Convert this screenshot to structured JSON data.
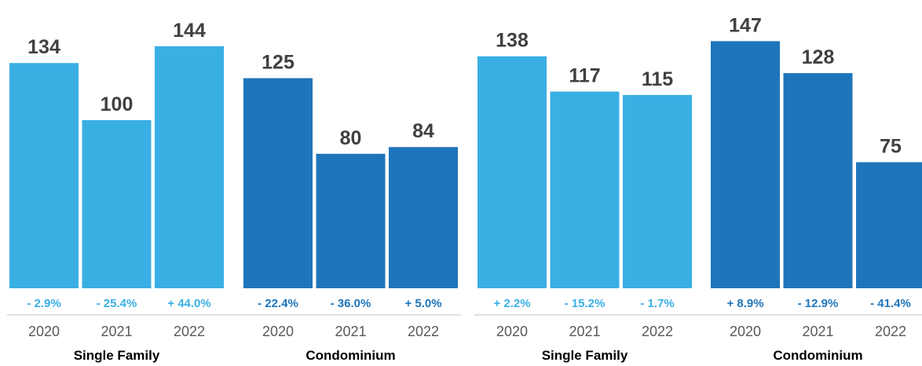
{
  "colors": {
    "single_family": "#3AAFE4",
    "condominium": "#1F75BA",
    "axis": "#BFBFBF"
  },
  "chart_data": [
    {
      "type": "bar",
      "title": "",
      "ylim": [
        0,
        150
      ],
      "groups": [
        {
          "name": "Single Family",
          "color": "#3AAFE4",
          "categories": [
            "2020",
            "2021",
            "2022"
          ],
          "values": [
            134,
            100,
            144
          ],
          "changes": [
            "- 2.9%",
            "- 25.4%",
            "+ 44.0%"
          ]
        },
        {
          "name": "Condominium",
          "color": "#1F75BA",
          "categories": [
            "2020",
            "2021",
            "2022"
          ],
          "values": [
            125,
            80,
            84
          ],
          "changes": [
            "- 22.4%",
            "- 36.0%",
            "+ 5.0%"
          ]
        }
      ]
    },
    {
      "type": "bar",
      "title": "",
      "ylim": [
        0,
        150
      ],
      "groups": [
        {
          "name": "Single Family",
          "color": "#3AAFE4",
          "categories": [
            "2020",
            "2021",
            "2022"
          ],
          "values": [
            138,
            117,
            115
          ],
          "changes": [
            "+ 2.2%",
            "- 15.2%",
            "- 1.7%"
          ]
        },
        {
          "name": "Condominium",
          "color": "#1F75BA",
          "categories": [
            "2020",
            "2021",
            "2022"
          ],
          "values": [
            147,
            128,
            75
          ],
          "changes": [
            "+ 8.9%",
            "- 12.9%",
            "- 41.4%"
          ]
        }
      ]
    }
  ]
}
